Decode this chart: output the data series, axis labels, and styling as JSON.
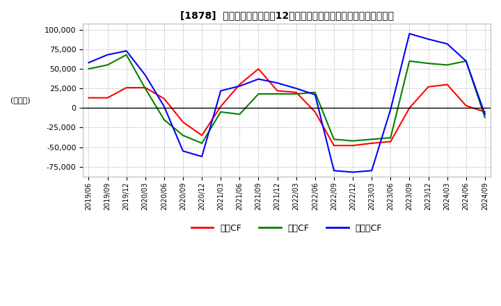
{
  "title": "[1878]  キャッシュフローの12か月移動合計の対前年同期増減額の推移",
  "ylabel": "(百万円)",
  "ylim": [
    -87500,
    107500
  ],
  "yticks": [
    -75000,
    -50000,
    -25000,
    0,
    25000,
    50000,
    75000,
    100000
  ],
  "legend_labels": [
    "営業CF",
    "投資CF",
    "フリーCF"
  ],
  "line_colors": [
    "#ff0000",
    "#008000",
    "#0000ff"
  ],
  "dates": [
    "2019/06",
    "2019/09",
    "2019/12",
    "2020/03",
    "2020/06",
    "2020/09",
    "2020/12",
    "2021/03",
    "2021/06",
    "2021/09",
    "2021/12",
    "2022/03",
    "2022/06",
    "2022/09",
    "2022/12",
    "2023/03",
    "2023/06",
    "2023/09",
    "2023/12",
    "2024/03",
    "2024/06",
    "2024/09"
  ],
  "operating_cf": [
    13000,
    13000,
    26000,
    26000,
    12000,
    -18000,
    -35000,
    2000,
    30000,
    50000,
    22000,
    20000,
    -5000,
    -48000,
    -48000,
    -45000,
    -43000,
    0,
    27000,
    30000,
    3000,
    -5000
  ],
  "investing_cf": [
    50000,
    55000,
    68000,
    25000,
    -15000,
    -35000,
    -45000,
    -5000,
    -8000,
    18000,
    18000,
    18000,
    20000,
    -40000,
    -42000,
    -40000,
    -38000,
    60000,
    57000,
    55000,
    60000,
    -12000
  ],
  "free_cf": [
    58000,
    68000,
    73000,
    42000,
    2000,
    -55000,
    -62000,
    22000,
    28000,
    37000,
    32000,
    25000,
    17000,
    -80000,
    -82000,
    -80000,
    -2000,
    95000,
    88000,
    82000,
    60000,
    -8000
  ]
}
